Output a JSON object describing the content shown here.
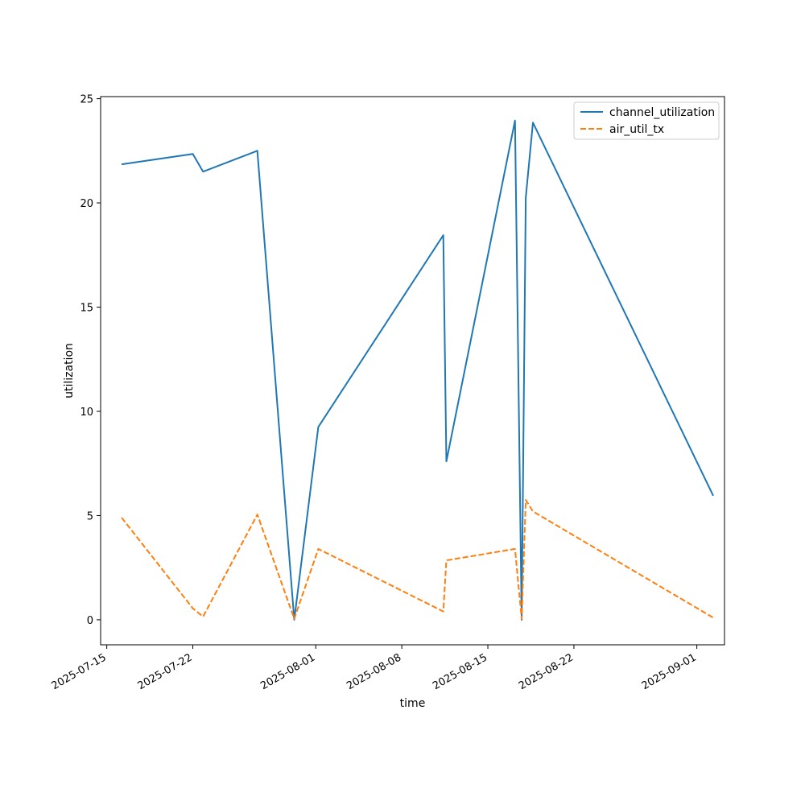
{
  "chart_data": {
    "type": "line",
    "xlabel": "time",
    "ylabel": "utilization",
    "x_type": "date",
    "xlim": [
      "2025-07-14T12:00",
      "2025-09-03T06:00"
    ],
    "ylim": [
      -1.2,
      25.1
    ],
    "xticks": [
      "2025-07-15",
      "2025-07-22",
      "2025-08-01",
      "2025-08-08",
      "2025-08-15",
      "2025-08-22",
      "2025-09-01"
    ],
    "yticks": [
      0,
      5,
      10,
      15,
      20,
      25
    ],
    "grid": false,
    "legend_position": "top-right",
    "series": [
      {
        "name": "channel_utilization",
        "color": "#1f77b4",
        "dash": "solid",
        "points": [
          [
            "2025-07-16T05:00",
            21.85
          ],
          [
            "2025-07-22T00:00",
            22.35
          ],
          [
            "2025-07-22T20:00",
            21.5
          ],
          [
            "2025-07-27T06:00",
            22.5
          ],
          [
            "2025-07-30T06:00",
            0.0
          ],
          [
            "2025-08-01T05:00",
            9.25
          ],
          [
            "2025-08-11T09:00",
            18.45
          ],
          [
            "2025-08-11T15:00",
            7.6
          ],
          [
            "2025-08-17T05:00",
            23.95
          ],
          [
            "2025-08-17T18:00",
            0.0
          ],
          [
            "2025-08-18T02:00",
            20.25
          ],
          [
            "2025-08-18T16:00",
            23.85
          ],
          [
            "2025-09-02T08:00",
            5.95
          ]
        ]
      },
      {
        "name": "air_util_tx",
        "color": "#ff7f0e",
        "dash": "dashed",
        "points": [
          [
            "2025-07-16T05:00",
            4.9
          ],
          [
            "2025-07-22T00:00",
            0.55
          ],
          [
            "2025-07-22T20:00",
            0.15
          ],
          [
            "2025-07-27T06:00",
            5.05
          ],
          [
            "2025-07-30T06:00",
            0.05
          ],
          [
            "2025-08-01T05:00",
            3.4
          ],
          [
            "2025-08-11T09:00",
            0.4
          ],
          [
            "2025-08-11T15:00",
            2.85
          ],
          [
            "2025-08-17T05:00",
            3.4
          ],
          [
            "2025-08-17T18:00",
            0.05
          ],
          [
            "2025-08-18T02:00",
            5.75
          ],
          [
            "2025-08-18T16:00",
            5.2
          ],
          [
            "2025-09-02T08:00",
            0.1
          ]
        ]
      }
    ]
  }
}
